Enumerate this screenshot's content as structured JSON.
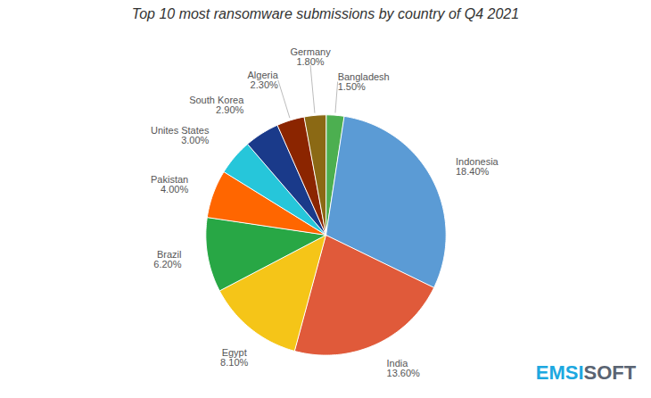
{
  "chart_data": {
    "type": "pie",
    "title": "Top 10 most ransomware submissions by country of Q4 2021",
    "categories": [
      "Bangladesh",
      "Indonesia",
      "India",
      "Egypt",
      "Brazil",
      "Pakistan",
      "Unites States",
      "South Korea",
      "Algeria",
      "Germany"
    ],
    "values": [
      1.5,
      18.4,
      13.6,
      8.1,
      6.2,
      4.0,
      3.0,
      2.9,
      2.3,
      1.8
    ],
    "value_labels": [
      "1.50%",
      "18.40%",
      "13.60%",
      "8.10%",
      "6.20%",
      "4.00%",
      "3.00%",
      "2.90%",
      "2.30%",
      "1.80%"
    ],
    "data_labels": true,
    "colors": [
      "#4caf50",
      "#5b9bd5",
      "#e05a3a",
      "#f5c518",
      "#28a745",
      "#ff6600",
      "#26c6da",
      "#1a3a8a",
      "#8B2500",
      "#8B6914"
    ],
    "annotations": [
      {
        "text": "EMSI",
        "color": "#1da8e0"
      },
      {
        "text": "SOFT",
        "color": "#5a6472"
      }
    ]
  }
}
